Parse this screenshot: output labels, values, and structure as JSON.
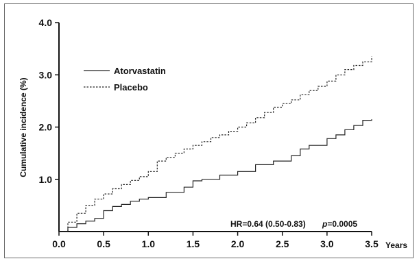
{
  "chart_data": {
    "type": "line",
    "title": "",
    "xlabel": "Years",
    "ylabel": "Cumulative incidence (%)",
    "xlim": [
      0,
      3.5
    ],
    "ylim": [
      0,
      4.0
    ],
    "x_ticks": [
      "0.0",
      "0.5",
      "1.0",
      "1.5",
      "2.0",
      "2.5",
      "3.0",
      "3.5"
    ],
    "y_ticks": [
      "1.0",
      "2.0",
      "3.0",
      "4.0"
    ],
    "grid": false,
    "legend_position": "top-left",
    "series": [
      {
        "name": "Atorvastatin",
        "style": "solid",
        "color": "#222222",
        "x": [
          0,
          0.1,
          0.2,
          0.3,
          0.4,
          0.5,
          0.6,
          0.7,
          0.8,
          0.9,
          1.0,
          1.2,
          1.4,
          1.5,
          1.6,
          1.8,
          2.0,
          2.2,
          2.4,
          2.6,
          2.7,
          2.8,
          3.0,
          3.1,
          3.2,
          3.3,
          3.4,
          3.5
        ],
        "y": [
          0,
          0.08,
          0.15,
          0.2,
          0.25,
          0.4,
          0.48,
          0.52,
          0.58,
          0.62,
          0.65,
          0.75,
          0.85,
          0.97,
          1.0,
          1.08,
          1.15,
          1.28,
          1.35,
          1.45,
          1.58,
          1.65,
          1.78,
          1.85,
          1.95,
          2.03,
          2.13,
          2.15
        ]
      },
      {
        "name": "Placebo",
        "style": "dashed",
        "color": "#222222",
        "x": [
          0,
          0.1,
          0.2,
          0.3,
          0.4,
          0.5,
          0.6,
          0.7,
          0.8,
          0.9,
          1.0,
          1.1,
          1.2,
          1.3,
          1.4,
          1.5,
          1.6,
          1.7,
          1.8,
          1.9,
          2.0,
          2.1,
          2.2,
          2.3,
          2.4,
          2.5,
          2.6,
          2.7,
          2.8,
          2.9,
          3.0,
          3.1,
          3.2,
          3.3,
          3.4,
          3.5
        ],
        "y": [
          0,
          0.18,
          0.35,
          0.5,
          0.62,
          0.72,
          0.82,
          0.9,
          0.98,
          1.05,
          1.15,
          1.35,
          1.42,
          1.5,
          1.58,
          1.65,
          1.72,
          1.8,
          1.85,
          1.92,
          2.0,
          2.08,
          2.18,
          2.28,
          2.38,
          2.45,
          2.52,
          2.62,
          2.7,
          2.78,
          2.88,
          3.0,
          3.1,
          3.18,
          3.25,
          3.35
        ]
      }
    ],
    "annotations": {
      "hr": "HR=0.64 (0.50-0.83)",
      "p_prefix": "p",
      "p_value": "=0.0005"
    }
  }
}
